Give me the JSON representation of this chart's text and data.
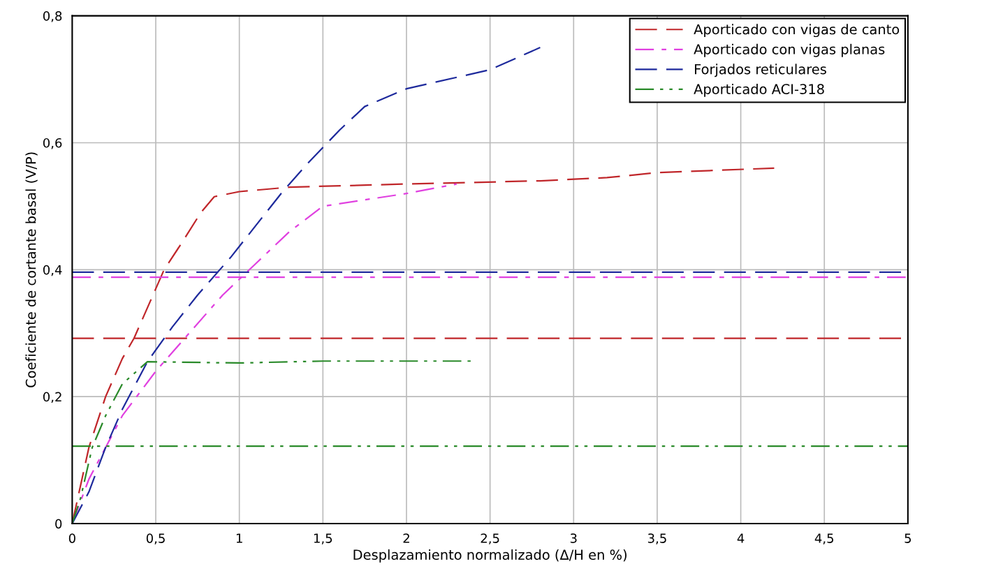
{
  "chart_data": {
    "type": "line",
    "xlabel": "Desplazamiento normalizado (Δ/H en %)",
    "ylabel": "Coeficiente de cortante basal (V/P)",
    "xlim": [
      0,
      5
    ],
    "ylim": [
      0,
      0.8
    ],
    "xticks": [
      0,
      {
        "value": 0.5,
        "label": "0,5"
      },
      1,
      {
        "value": 1.5,
        "label": "1,5"
      },
      2,
      {
        "value": 2.5,
        "label": "2,5"
      },
      3,
      {
        "value": 3.5,
        "label": "3,5"
      },
      4,
      {
        "value": 4.5,
        "label": "4,5"
      },
      5
    ],
    "yticks": [
      0,
      {
        "value": 0.2,
        "label": "0,2"
      },
      {
        "value": 0.4,
        "label": "0,4"
      },
      {
        "value": 0.6,
        "label": "0,6"
      },
      {
        "value": 0.8,
        "label": "0,8"
      }
    ],
    "grid": true,
    "legend": "top right",
    "marker": "none",
    "series": [
      {
        "name": "Aporticado con vigas de canto",
        "color": "#c0262a",
        "line_style": "dashed",
        "x": [
          0,
          0.05,
          0.1,
          0.2,
          0.3,
          0.37,
          0.45,
          0.55,
          0.65,
          0.77,
          0.85,
          1.0,
          1.3,
          2.0,
          2.8,
          3.2,
          3.5,
          4.2
        ],
        "values": [
          0,
          0.06,
          0.12,
          0.2,
          0.26,
          0.292,
          0.34,
          0.4,
          0.44,
          0.49,
          0.515,
          0.523,
          0.53,
          0.535,
          0.54,
          0.545,
          0.553,
          0.56
        ]
      },
      {
        "name": "Aporticado con vigas planas",
        "color": "#e040e0",
        "line_style": "dashdot",
        "x": [
          0,
          0.1,
          0.2,
          0.3,
          0.5,
          0.7,
          0.9,
          1.1,
          1.3,
          1.5,
          2.0,
          2.3
        ],
        "values": [
          0,
          0.07,
          0.12,
          0.17,
          0.24,
          0.3,
          0.36,
          0.41,
          0.46,
          0.5,
          0.52,
          0.535
        ]
      },
      {
        "name": "Forjados reticulares",
        "color": "#1e2a9c",
        "line_style": "dashed",
        "x": [
          0,
          0.1,
          0.2,
          0.3,
          0.45,
          0.6,
          0.75,
          0.95,
          1.1,
          1.25,
          1.4,
          1.6,
          1.75,
          2.0,
          2.5,
          2.8
        ],
        "values": [
          0,
          0.05,
          0.12,
          0.18,
          0.255,
          0.31,
          0.36,
          0.42,
          0.47,
          0.52,
          0.565,
          0.62,
          0.657,
          0.685,
          0.715,
          0.75
        ]
      },
      {
        "name": "Aporticado ACI-318",
        "color": "#2a8a2a",
        "line_style": "dashdotdot",
        "x": [
          0,
          0.05,
          0.12,
          0.2,
          0.3,
          0.45,
          1.0,
          1.5,
          2.4
        ],
        "values": [
          0,
          0.04,
          0.12,
          0.17,
          0.22,
          0.255,
          0.253,
          0.256,
          0.256
        ]
      }
    ],
    "ref_lines": [
      {
        "axis": "y",
        "value": 0.292,
        "color": "#c0262a",
        "line_style": "dashed"
      },
      {
        "axis": "y",
        "value": 0.388,
        "color": "#e040e0",
        "line_style": "dashdot"
      },
      {
        "axis": "y",
        "value": 0.396,
        "color": "#1e2a9c",
        "line_style": "dashed"
      },
      {
        "axis": "y",
        "value": 0.122,
        "color": "#2a8a2a",
        "line_style": "dashdotdot"
      }
    ]
  }
}
